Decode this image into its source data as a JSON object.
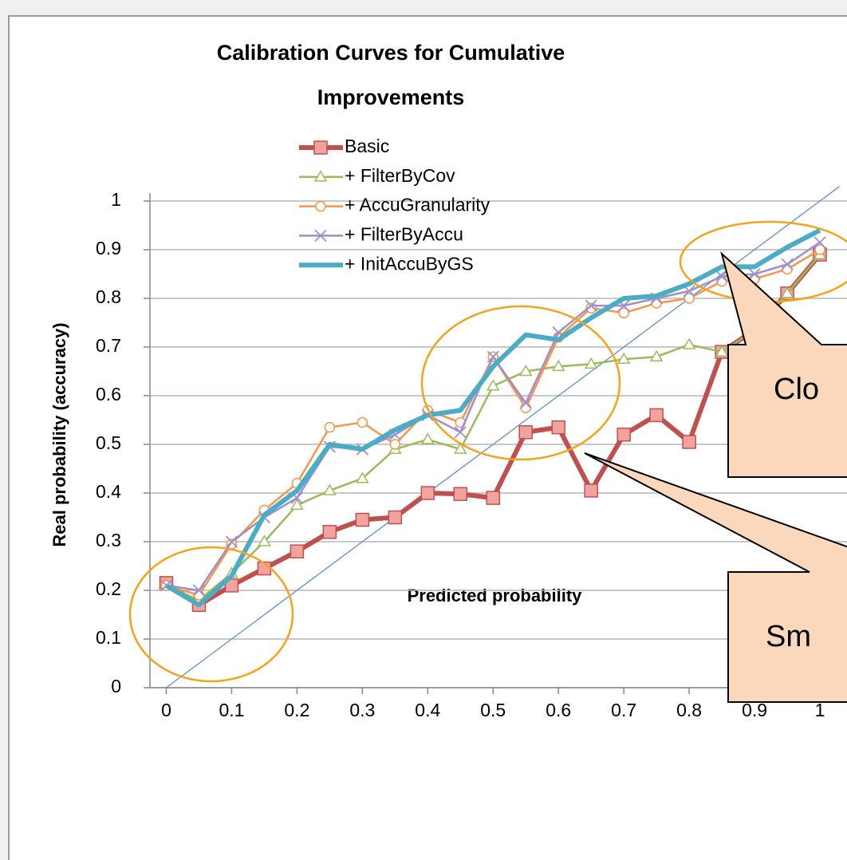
{
  "chart_data": {
    "type": "line",
    "title": [
      "Calibration Curves for Cumulative",
      "Improvements"
    ],
    "x_label": "Predicted probability",
    "y_label": "Real probability (accuracy)",
    "x": [
      0,
      0.05,
      0.1,
      0.15,
      0.2,
      0.25,
      0.3,
      0.35,
      0.4,
      0.45,
      0.5,
      0.55,
      0.6,
      0.65,
      0.7,
      0.75,
      0.8,
      0.85,
      0.9,
      0.95,
      1
    ],
    "series": [
      {
        "name": "Basic",
        "color": "#c0504d",
        "marker": "square",
        "values": [
          0.215,
          0.17,
          0.21,
          0.245,
          0.28,
          0.32,
          0.345,
          0.35,
          0.4,
          0.398,
          0.39,
          0.525,
          0.535,
          0.405,
          0.52,
          0.56,
          0.505,
          0.69,
          0.735,
          0.81,
          0.89
        ]
      },
      {
        "name": "+ FilterByCov",
        "color": "#9bbb59",
        "marker": "triangle",
        "values": [
          0.21,
          0.18,
          0.235,
          0.3,
          0.375,
          0.405,
          0.43,
          0.49,
          0.51,
          0.49,
          0.62,
          0.65,
          0.66,
          0.665,
          0.675,
          0.68,
          0.705,
          0.69,
          0.735,
          0.81,
          0.89
        ]
      },
      {
        "name": "+ AccuGranularity",
        "color": "#f79646",
        "marker": "circle",
        "values": [
          0.21,
          0.19,
          0.295,
          0.365,
          0.42,
          0.535,
          0.545,
          0.5,
          0.57,
          0.545,
          0.68,
          0.575,
          0.72,
          0.78,
          0.77,
          0.79,
          0.8,
          0.835,
          0.84,
          0.86,
          0.9
        ]
      },
      {
        "name": "+ FilterByAccu",
        "color": "#9e8fcf",
        "marker": "x",
        "values": [
          0.21,
          0.2,
          0.3,
          0.35,
          0.39,
          0.495,
          0.49,
          0.52,
          0.56,
          0.525,
          0.68,
          0.585,
          0.73,
          0.785,
          0.785,
          0.8,
          0.815,
          0.845,
          0.85,
          0.87,
          0.915
        ]
      },
      {
        "name": "+ InitAccuByGS",
        "color": "#4bacc6",
        "marker": "none",
        "values": [
          0.21,
          0.17,
          0.23,
          0.355,
          0.405,
          0.5,
          0.49,
          0.53,
          0.56,
          0.57,
          0.66,
          0.725,
          0.715,
          0.76,
          0.8,
          0.805,
          0.83,
          0.865,
          0.865,
          0.905,
          0.94
        ]
      }
    ],
    "xlim": [
      -0.025,
      1.05
    ],
    "ylim": [
      0,
      1
    ],
    "xticks": [
      0,
      0.1,
      0.2,
      0.3,
      0.4,
      0.5,
      0.6,
      0.7,
      0.8,
      0.9,
      1
    ],
    "yticks": [
      0,
      0.1,
      0.2,
      0.3,
      0.4,
      0.5,
      0.6,
      0.7,
      0.8,
      0.9,
      1
    ],
    "grid": true,
    "annotations": [
      "Clo",
      "Sm"
    ]
  }
}
